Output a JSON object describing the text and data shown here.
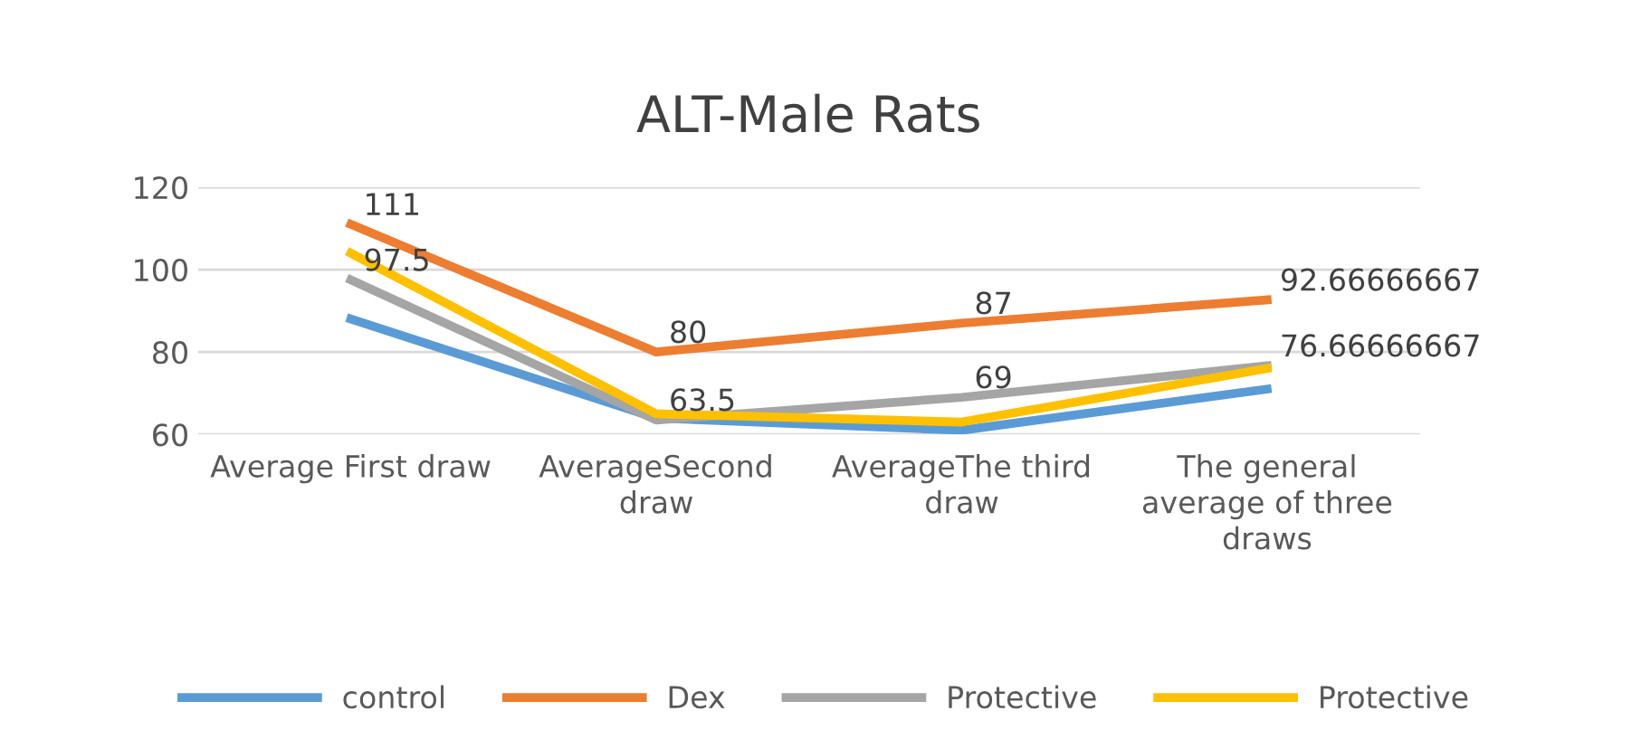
{
  "chart_data": {
    "type": "line",
    "title": "ALT-Male Rats",
    "categories": [
      "Average First draw",
      "AverageSecond draw",
      "AverageThe third draw",
      "The general average of three draws"
    ],
    "series": [
      {
        "name": "control",
        "color": "#5b9bd5",
        "values": [
          88,
          64,
          61,
          71
        ]
      },
      {
        "name": "Dex",
        "color": "#ed7d31",
        "values": [
          111,
          80,
          87,
          92.66666667
        ],
        "value_labels": [
          "111",
          "80",
          "87",
          "92.66666667"
        ]
      },
      {
        "name": "Protective",
        "color": "#a5a5a5",
        "values": [
          97.5,
          63.5,
          69,
          76.66666667
        ],
        "value_labels": [
          "97.5",
          "63.5",
          "69",
          "76.66666667"
        ]
      },
      {
        "name": "Protective",
        "color": "#ffc000",
        "values": [
          104,
          65,
          63,
          76
        ]
      }
    ],
    "ylim": [
      60,
      120
    ],
    "yticks": [
      60,
      80,
      100,
      120
    ],
    "grid": "y",
    "legend": "bottom",
    "marker": "none",
    "line_style": "solid"
  }
}
